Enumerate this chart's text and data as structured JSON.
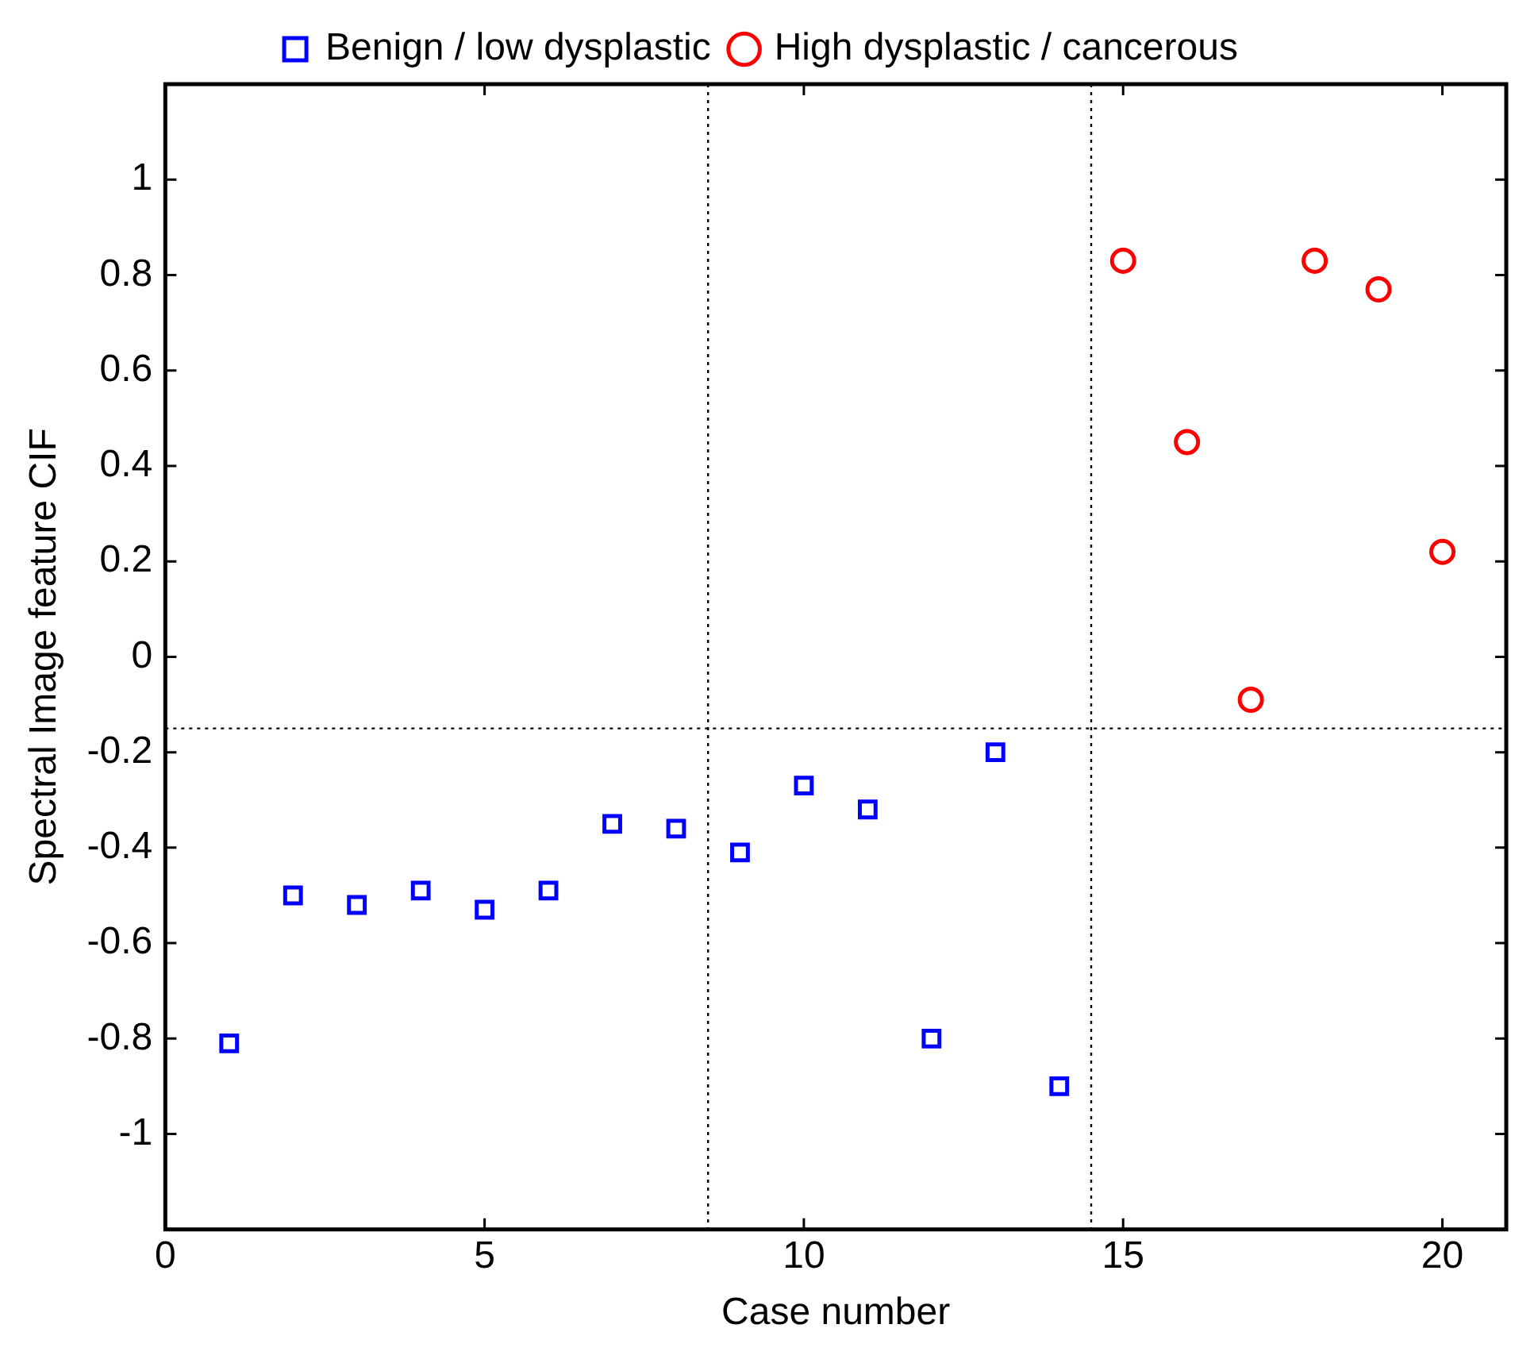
{
  "chart_data": {
    "type": "scatter",
    "xlabel": "Case number",
    "ylabel": "Spectral Image feature CIF",
    "legend": "top",
    "grid": false,
    "xlim": [
      0,
      21
    ],
    "xticks": [
      0,
      5,
      10,
      15,
      20
    ],
    "ylim": [
      -1.2,
      1.2
    ],
    "yticks": [
      -1,
      -0.8,
      -0.6,
      -0.4,
      -0.2,
      0,
      0.2,
      0.4,
      0.6,
      0.8,
      1
    ],
    "series": [
      {
        "name": "Benign / low dysplastic",
        "color": "#0000ff",
        "marker": "square",
        "x": [
          1,
          2,
          3,
          4,
          5,
          6,
          7,
          8,
          9,
          10,
          11,
          12,
          13,
          14
        ],
        "values": [
          -0.81,
          -0.5,
          -0.52,
          -0.49,
          -0.53,
          -0.49,
          -0.35,
          -0.36,
          -0.41,
          -0.27,
          -0.32,
          -0.8,
          -0.2,
          -0.9
        ]
      },
      {
        "name": "High dysplastic / cancerous",
        "color": "#ff0000",
        "marker": "circle",
        "x": [
          15,
          16,
          17,
          18,
          19,
          20
        ],
        "values": [
          0.83,
          0.45,
          -0.09,
          0.83,
          0.77,
          0.22
        ]
      }
    ],
    "ref_lines": [
      {
        "axis": "x",
        "value": 8.5,
        "line_style": "dotted"
      },
      {
        "axis": "x",
        "value": 14.5,
        "line_style": "dotted"
      },
      {
        "axis": "y",
        "value": -0.15,
        "line_style": "dotted"
      }
    ]
  }
}
